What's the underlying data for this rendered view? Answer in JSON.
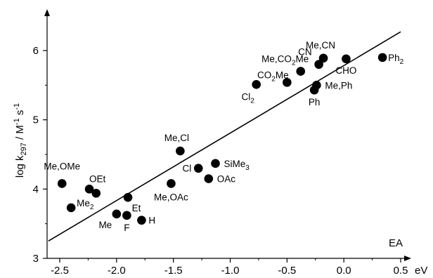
{
  "chart_data": {
    "type": "scatter",
    "title": "",
    "xlabel": "EA",
    "x_unit": "eV",
    "ylabel": "log k297 / M-1 s-1",
    "ylabel_parts": {
      "base": "log k",
      "sub": "297",
      "mid": "/ M",
      "sup1": "-1",
      "mid2": "s",
      "sup2": "-1"
    },
    "xlim": [
      -2.6,
      0.58
    ],
    "ylim": [
      3.0,
      6.55
    ],
    "x_ticks": [
      -2.5,
      -2.0,
      -1.5,
      -1.0,
      -0.5,
      0.0,
      0.5
    ],
    "x_tick_labels": [
      "-2.5",
      "-2.0",
      "-1.5",
      "-1.0",
      "-0.5",
      "0.0",
      "0.5"
    ],
    "y_ticks": [
      3,
      4,
      5,
      6
    ],
    "y_tick_labels": [
      "3",
      "4",
      "5",
      "6"
    ],
    "grid": false,
    "legend": "none",
    "marker_color": "#000000",
    "fit_line": {
      "x": [
        -2.6,
        0.5
      ],
      "y": [
        3.25,
        6.27
      ]
    },
    "points": [
      {
        "x": -2.48,
        "y": 4.08,
        "label": "Me,OMe"
      },
      {
        "x": -2.4,
        "y": 3.73,
        "label": "Me",
        "label_sub": "2"
      },
      {
        "x": -2.24,
        "y": 4.0,
        "label": "OEt"
      },
      {
        "x": -2.18,
        "y": 3.94,
        "label": ""
      },
      {
        "x": -2.0,
        "y": 3.64,
        "label": "Me"
      },
      {
        "x": -1.91,
        "y": 3.62,
        "label": "F"
      },
      {
        "x": -1.9,
        "y": 3.88,
        "label": "Et"
      },
      {
        "x": -1.78,
        "y": 3.55,
        "label": "H"
      },
      {
        "x": -1.52,
        "y": 4.08,
        "label": "Me,OAc"
      },
      {
        "x": -1.44,
        "y": 4.55,
        "label": "Me,Cl"
      },
      {
        "x": -1.28,
        "y": 4.3,
        "label": "Cl"
      },
      {
        "x": -1.13,
        "y": 4.37,
        "label": "SiMe",
        "label_sub": "3"
      },
      {
        "x": -1.19,
        "y": 4.15,
        "label": "OAc"
      },
      {
        "x": -0.77,
        "y": 5.51,
        "label": "Cl",
        "label_sub": "2"
      },
      {
        "x": -0.5,
        "y": 5.54,
        "label": "CO",
        "label_sub": "2",
        "label_tail": "Me"
      },
      {
        "x": -0.38,
        "y": 5.7,
        "label": "Me,CO",
        "label_sub": "2",
        "label_tail": "Me"
      },
      {
        "x": -0.26,
        "y": 5.43,
        "label": "Ph"
      },
      {
        "x": -0.24,
        "y": 5.5,
        "label": "Me,Ph"
      },
      {
        "x": -0.22,
        "y": 5.8,
        "label": "CN"
      },
      {
        "x": -0.18,
        "y": 5.89,
        "label": "Me,CN"
      },
      {
        "x": 0.02,
        "y": 5.88,
        "label": "CHO"
      },
      {
        "x": 0.34,
        "y": 5.9,
        "label": "Ph",
        "label_sub": "2"
      }
    ]
  }
}
